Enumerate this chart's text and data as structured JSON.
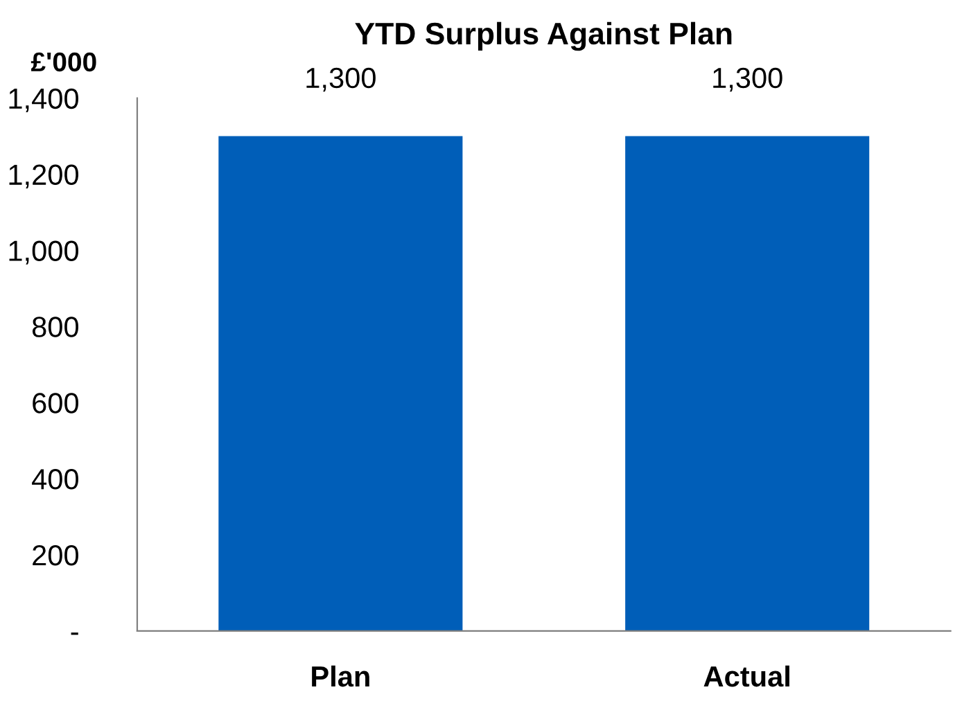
{
  "chart_data": {
    "type": "bar",
    "title": "YTD Surplus Against Plan",
    "ylabel": "£'000",
    "categories": [
      "Plan",
      "Actual"
    ],
    "values": [
      1300,
      1300
    ],
    "value_labels": [
      "1,300",
      "1,300"
    ],
    "color": "#005eb8",
    "ylim": [
      0,
      1400
    ],
    "yticks": [
      {
        "value": 0,
        "label": "-"
      },
      200,
      400,
      600,
      800,
      {
        "value": 1000,
        "label": "1,000"
      },
      {
        "value": 1200,
        "label": "1,200"
      },
      {
        "value": 1400,
        "label": "1,400"
      }
    ],
    "grid": false,
    "legend": false
  }
}
